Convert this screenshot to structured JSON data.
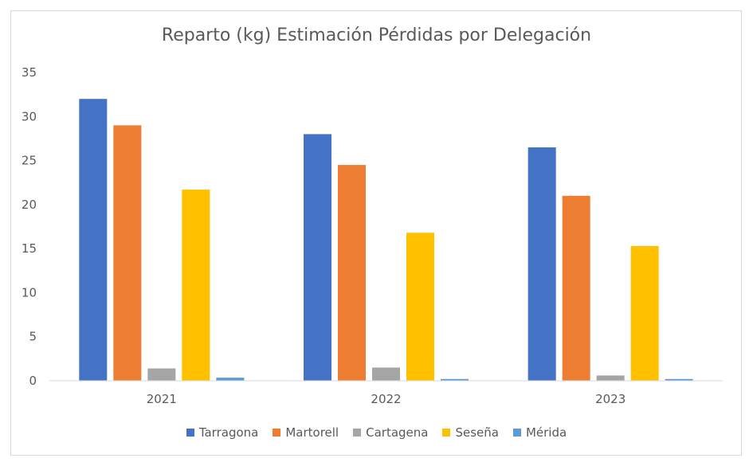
{
  "chart_data": {
    "type": "bar",
    "title": "Reparto (kg) Estimación Pérdidas por Delegación",
    "xlabel": "",
    "ylabel": "",
    "categories": [
      "2021",
      "2022",
      "2023"
    ],
    "ylim": [
      0,
      35
    ],
    "yticks": [
      0,
      5,
      10,
      15,
      20,
      25,
      30,
      35
    ],
    "grid": false,
    "legend_position": "bottom",
    "series": [
      {
        "name": "Tarragona",
        "color": "#4472C4",
        "values": [
          32,
          28,
          26.5
        ]
      },
      {
        "name": "Martorell",
        "color": "#ED7D31",
        "values": [
          29,
          24.5,
          21
        ]
      },
      {
        "name": "Cartagena",
        "color": "#A5A5A5",
        "values": [
          1.4,
          1.5,
          0.6
        ]
      },
      {
        "name": "Seseña",
        "color": "#FFC000",
        "values": [
          21.7,
          16.8,
          15.3
        ]
      },
      {
        "name": "Mérida",
        "color": "#5B9BD5",
        "values": [
          0.35,
          0.2,
          0.2
        ]
      }
    ]
  }
}
